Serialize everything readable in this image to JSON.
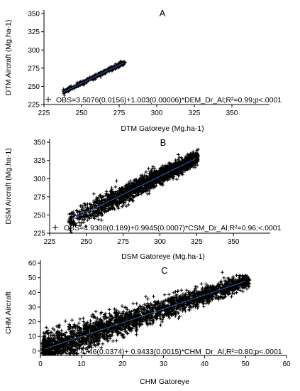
{
  "chart_data": [
    {
      "type": "scatter",
      "panel_label": "A",
      "xlabel": "DTM Gatoreye (Mg.ha-1)",
      "ylabel": "DTM Aircraft (Mg.ha-1)",
      "xlim": [
        225,
        375
      ],
      "ylim": [
        225,
        355
      ],
      "x_ticks": [
        225,
        250,
        275,
        300,
        325,
        350
      ],
      "y_ticks": [
        225,
        250,
        275,
        300,
        325,
        350
      ],
      "x_tick_labels": [
        "225",
        "250",
        "275",
        "300",
        "325",
        "350"
      ],
      "y_tick_labels": [
        "225",
        "250",
        "275",
        "300",
        "325",
        "350"
      ],
      "equation": "OBS=3.5076(0.0156)+1.003(0.00006)*DEM_Dr_Al;R²=0.99;p<.0001",
      "fit": {
        "intercept": 3.5076,
        "slope": 1.003,
        "x_range": [
          238,
          278
        ]
      },
      "points_x_range": [
        238,
        279
      ],
      "residual_spread": 2.5,
      "point_count_drawn": 400,
      "grid": false
    },
    {
      "type": "scatter",
      "panel_label": "B",
      "xlabel": "DSM Gatoreye (Mg.ha-1)",
      "ylabel": "DSM Aircraft  (Mg.ha-1)",
      "xlim": [
        225,
        375
      ],
      "ylim": [
        225,
        355
      ],
      "x_ticks": [
        225,
        250,
        275,
        300,
        325,
        350
      ],
      "y_ticks": [
        225,
        250,
        275,
        300,
        325,
        350
      ],
      "x_tick_labels": [
        "225",
        "250",
        "275",
        "300",
        "325",
        "350"
      ],
      "y_tick_labels": [
        "225",
        "250",
        "275",
        "300",
        "325",
        "350"
      ],
      "equation": "OBS=4.9308(0.189)+0.9945(0.0007)*CSM_Dr_Al;R²=0.96;<.0001",
      "fit": {
        "intercept": 4.9308,
        "slope": 0.9945,
        "x_range": [
          240,
          325
        ]
      },
      "points_x_range": [
        238,
        326
      ],
      "residual_spread": 12,
      "point_count_drawn": 2200,
      "grid": false
    },
    {
      "type": "scatter",
      "panel_label": "C",
      "xlabel": "CHM Gatoreye",
      "ylabel": "CHM Aircraft",
      "xlim": [
        0,
        60
      ],
      "ylim": [
        -3,
        62
      ],
      "x_ticks": [
        0,
        10,
        20,
        30,
        40,
        50,
        60
      ],
      "y_ticks": [
        0,
        10,
        20,
        30,
        40,
        50,
        60
      ],
      "x_tick_labels": [
        "0",
        "10",
        "20",
        "30",
        "40",
        "50",
        "60"
      ],
      "y_tick_labels": [
        "0",
        "10",
        "20",
        "30",
        "40",
        "50",
        "60"
      ],
      "equation": "OBS=0.4746(0.0374)+ 0.9433(0.0015)*CHM_Dr_Al;R²=0.80;p<.0001",
      "fit": {
        "intercept": 0.4746,
        "slope": 0.9433,
        "x_range": [
          1,
          50
        ]
      },
      "points_x_range": [
        0.5,
        51
      ],
      "residual_spread": 8,
      "point_count_drawn": 2600,
      "grid": false
    }
  ]
}
